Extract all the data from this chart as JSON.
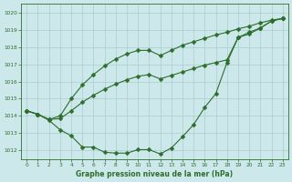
{
  "title": "Graphe pression niveau de la mer (hPa)",
  "bg_color": "#cce8ea",
  "grid_color": "#aacccc",
  "line_color": "#2d6e2d",
  "xlim": [
    -0.5,
    23.5
  ],
  "ylim": [
    1011.5,
    1020.5
  ],
  "yticks": [
    1012,
    1013,
    1014,
    1015,
    1016,
    1017,
    1018,
    1019,
    1020
  ],
  "xticks": [
    0,
    1,
    2,
    3,
    4,
    5,
    6,
    7,
    8,
    9,
    10,
    11,
    12,
    13,
    14,
    15,
    16,
    17,
    18,
    19,
    20,
    21,
    22,
    23
  ],
  "line_top": [
    1014.3,
    1014.1,
    1013.8,
    1014.0,
    1015.0,
    1015.8,
    1016.4,
    1016.9,
    1017.3,
    1017.6,
    1017.8,
    1017.8,
    1017.5,
    1017.8,
    1018.1,
    1018.3,
    1018.5,
    1018.7,
    1018.85,
    1019.05,
    1019.2,
    1019.4,
    1019.55,
    1019.65
  ],
  "line_mid": [
    1014.3,
    1014.1,
    1013.8,
    1013.85,
    1014.3,
    1014.8,
    1015.2,
    1015.55,
    1015.85,
    1016.1,
    1016.3,
    1016.4,
    1016.15,
    1016.35,
    1016.55,
    1016.75,
    1016.95,
    1017.1,
    1017.25,
    1018.55,
    1018.75,
    1019.1,
    1019.5,
    1019.65
  ],
  "line_bot": [
    1014.3,
    1014.1,
    1013.75,
    1013.2,
    1012.85,
    1012.2,
    1012.2,
    1011.9,
    1011.85,
    1011.85,
    1012.05,
    1012.05,
    1011.8,
    1012.15,
    1012.8,
    1013.5,
    1014.5,
    1015.3,
    1017.1,
    1018.55,
    1018.85,
    1019.1,
    1019.5,
    1019.65
  ]
}
